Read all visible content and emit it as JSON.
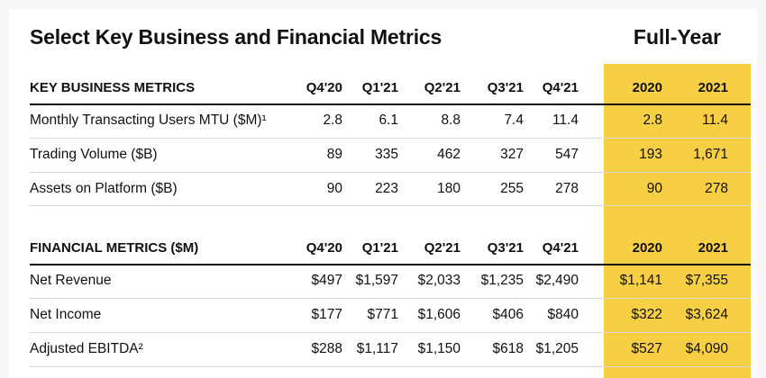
{
  "title": "Select Key Business and Financial Metrics",
  "full_year_title": "Full-Year",
  "colors": {
    "highlight": "#f7cf45",
    "text": "#111111",
    "rule": "#d9d9d9"
  },
  "business": {
    "header": [
      "KEY BUSINESS METRICS",
      "Q4'20",
      "Q1'21",
      "Q2'21",
      "Q3'21",
      "Q4'21",
      "2020",
      "2021"
    ],
    "rows": [
      [
        "Monthly Transacting Users MTU ($M)¹",
        "2.8",
        "6.1",
        "8.8",
        "7.4",
        "11.4",
        "2.8",
        "11.4"
      ],
      [
        "Trading Volume ($B)",
        "89",
        "335",
        "462",
        "327",
        "547",
        "193",
        "1,671"
      ],
      [
        "Assets on Platform ($B)",
        "90",
        "223",
        "180",
        "255",
        "278",
        "90",
        "278"
      ]
    ]
  },
  "financial": {
    "header": [
      "FINANCIAL METRICS ($M)",
      "Q4'20",
      "Q1'21",
      "Q2'21",
      "Q3'21",
      "Q4'21",
      "2020",
      "2021"
    ],
    "rows": [
      [
        "Net Revenue",
        "$497",
        "$1,597",
        "$2,033",
        "$1,235",
        "$2,490",
        "$1,141",
        "$7,355"
      ],
      [
        "Net Income",
        "$177",
        "$771",
        "$1,606",
        "$406",
        "$840",
        "$322",
        "$3,624"
      ],
      [
        "Adjusted EBITDA²",
        "$288",
        "$1,117",
        "$1,150",
        "$618",
        "$1,205",
        "$527",
        "$4,090"
      ]
    ]
  }
}
